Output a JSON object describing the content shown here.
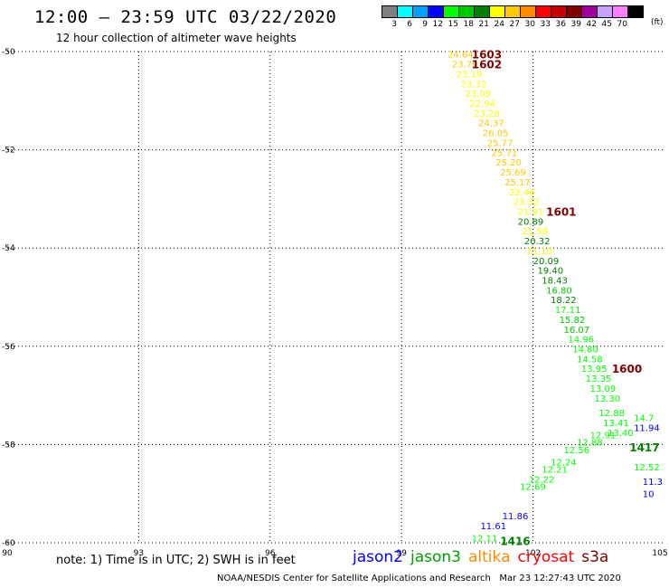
{
  "header": {
    "title": "12:00 – 23:59 UTC 03/22/2020",
    "subtitle": "12 hour collection of altimeter wave heights"
  },
  "color_scale": {
    "unit": "(ft)",
    "bins": [
      {
        "label": "3",
        "color": "#808080"
      },
      {
        "label": "6",
        "color": "#00ffff"
      },
      {
        "label": "9",
        "color": "#00a0ff"
      },
      {
        "label": "12",
        "color": "#0000ff"
      },
      {
        "label": "15",
        "color": "#00ff00"
      },
      {
        "label": "18",
        "color": "#00c800"
      },
      {
        "label": "21",
        "color": "#008000"
      },
      {
        "label": "24",
        "color": "#ffff00"
      },
      {
        "label": "27",
        "color": "#ffc800"
      },
      {
        "label": "30",
        "color": "#ff8c00"
      },
      {
        "label": "33",
        "color": "#ff0000"
      },
      {
        "label": "36",
        "color": "#c80000"
      },
      {
        "label": "39",
        "color": "#800000"
      },
      {
        "label": "42",
        "color": "#a000a0"
      },
      {
        "label": "45",
        "color": "#c8a0ff"
      },
      {
        "label": "70",
        "color": "#ff80ff"
      },
      {
        "label": "",
        "color": "#000000"
      }
    ]
  },
  "note": "note: 1) Time is in UTC; 2) SWH is in feet",
  "legend": [
    {
      "label": "jason2",
      "color": "#0000ff"
    },
    {
      "label": "jason3",
      "color": "#00a000"
    },
    {
      "label": "altika",
      "color": "#ff8c00"
    },
    {
      "label": "cryosat",
      "color": "#ff0000"
    },
    {
      "label": "s3a",
      "color": "#800000"
    }
  ],
  "footer": "NOAA/NESDIS Center for Satellite Applications and Research   Mar 23 12:27:43 UTC 2020",
  "chart_data": {
    "type": "scatter",
    "xlim": [
      90,
      105
    ],
    "ylim": [
      -60,
      -50
    ],
    "x_ticks": [
      "90",
      "93",
      "96",
      "99",
      "102",
      "105"
    ],
    "y_ticks": [
      "-50",
      "-52",
      "-54",
      "-56",
      "-58",
      "-60"
    ],
    "grid": true,
    "points": [
      {
        "x": 100.05,
        "y": -50.05,
        "label": "24.64",
        "color": "#ffc800"
      },
      {
        "x": 100.15,
        "y": -50.25,
        "label": "23.70",
        "color": "#ffc800"
      },
      {
        "x": 100.25,
        "y": -50.45,
        "label": "23.19",
        "color": "#ffff00"
      },
      {
        "x": 100.35,
        "y": -50.65,
        "label": "23.32",
        "color": "#ffff00"
      },
      {
        "x": 100.45,
        "y": -50.85,
        "label": "23.09",
        "color": "#ffff00"
      },
      {
        "x": 100.55,
        "y": -51.05,
        "label": "22.94",
        "color": "#ffff00"
      },
      {
        "x": 100.65,
        "y": -51.25,
        "label": "23.28",
        "color": "#ffff00"
      },
      {
        "x": 100.75,
        "y": -51.45,
        "label": "24.37",
        "color": "#ffc800"
      },
      {
        "x": 100.85,
        "y": -51.65,
        "label": "26.05",
        "color": "#ffc800"
      },
      {
        "x": 100.95,
        "y": -51.85,
        "label": "25.77",
        "color": "#ffc800"
      },
      {
        "x": 101.05,
        "y": -52.05,
        "label": "25.71",
        "color": "#ffc800"
      },
      {
        "x": 101.15,
        "y": -52.25,
        "label": "25.20",
        "color": "#ffc800"
      },
      {
        "x": 101.25,
        "y": -52.45,
        "label": "25.69",
        "color": "#ffc800"
      },
      {
        "x": 101.35,
        "y": -52.65,
        "label": "25.17",
        "color": "#ffc800"
      },
      {
        "x": 101.45,
        "y": -52.85,
        "label": "23.46",
        "color": "#ffff00"
      },
      {
        "x": 101.55,
        "y": -53.05,
        "label": "23.32",
        "color": "#ffff00"
      },
      {
        "x": 101.65,
        "y": -53.25,
        "label": "21.91",
        "color": "#ffff00"
      },
      {
        "x": 101.65,
        "y": -53.45,
        "label": "20.89",
        "color": "#008000"
      },
      {
        "x": 101.75,
        "y": -53.65,
        "label": "21.58",
        "color": "#ffff00"
      },
      {
        "x": 101.8,
        "y": -53.85,
        "label": "20.32",
        "color": "#008000"
      },
      {
        "x": 101.85,
        "y": -54.05,
        "label": "21.10",
        "color": "#ffff00"
      },
      {
        "x": 102.0,
        "y": -54.25,
        "label": "20.09",
        "color": "#008000"
      },
      {
        "x": 102.1,
        "y": -54.45,
        "label": "19.40",
        "color": "#008000"
      },
      {
        "x": 102.2,
        "y": -54.65,
        "label": "18.43",
        "color": "#008000"
      },
      {
        "x": 102.3,
        "y": -54.85,
        "label": "16.80",
        "color": "#00c800"
      },
      {
        "x": 102.4,
        "y": -55.05,
        "label": "18.22",
        "color": "#008000"
      },
      {
        "x": 102.5,
        "y": -55.25,
        "label": "17.11",
        "color": "#00ff00"
      },
      {
        "x": 102.6,
        "y": -55.45,
        "label": "15.82",
        "color": "#00c800"
      },
      {
        "x": 102.7,
        "y": -55.65,
        "label": "16.07",
        "color": "#00c800"
      },
      {
        "x": 102.8,
        "y": -55.85,
        "label": "14.96",
        "color": "#00ff00"
      },
      {
        "x": 102.9,
        "y": -56.05,
        "label": "14.80",
        "color": "#00ff00"
      },
      {
        "x": 103.0,
        "y": -56.25,
        "label": "14.58",
        "color": "#00ff00"
      },
      {
        "x": 103.1,
        "y": -56.45,
        "label": "13.95",
        "color": "#00ff00"
      },
      {
        "x": 103.2,
        "y": -56.65,
        "label": "13.35",
        "color": "#00ff00"
      },
      {
        "x": 103.3,
        "y": -56.85,
        "label": "13.09",
        "color": "#00ff00"
      },
      {
        "x": 103.4,
        "y": -57.05,
        "label": "13.30",
        "color": "#00ff00"
      },
      {
        "x": 103.5,
        "y": -57.35,
        "label": "12.88",
        "color": "#00ff00"
      },
      {
        "x": 103.6,
        "y": -57.55,
        "label": "13.41",
        "color": "#00ff00"
      },
      {
        "x": 103.7,
        "y": -57.75,
        "label": "13.40",
        "color": "#00ff00"
      },
      {
        "x": 103.3,
        "y": -57.8,
        "label": "12.91",
        "color": "#00ff00"
      },
      {
        "x": 103.0,
        "y": -57.95,
        "label": "12.88",
        "color": "#00ff00"
      },
      {
        "x": 102.7,
        "y": -58.1,
        "label": "12.56",
        "color": "#00ff00"
      },
      {
        "x": 102.4,
        "y": -58.35,
        "label": "12.24",
        "color": "#00ff00"
      },
      {
        "x": 102.2,
        "y": -58.5,
        "label": "12.21",
        "color": "#00ff00"
      },
      {
        "x": 101.9,
        "y": -58.7,
        "label": "12.22",
        "color": "#00ff00"
      },
      {
        "x": 101.7,
        "y": -58.85,
        "label": "12.69",
        "color": "#00ff00"
      },
      {
        "x": 101.3,
        "y": -59.45,
        "label": "11.86",
        "color": "#0000ff"
      },
      {
        "x": 100.8,
        "y": -59.65,
        "label": "11.61",
        "color": "#0000ff"
      },
      {
        "x": 100.6,
        "y": -59.9,
        "label": "12.11",
        "color": "#00ff00"
      },
      {
        "x": 104.3,
        "y": -57.45,
        "label": "14.7",
        "color": "#00ff00"
      },
      {
        "x": 104.3,
        "y": -57.65,
        "label": "11.94",
        "color": "#0000ff"
      },
      {
        "x": 104.3,
        "y": -58.45,
        "label": "12.52",
        "color": "#00ff00"
      },
      {
        "x": 104.5,
        "y": -58.75,
        "label": "11.3",
        "color": "#0000ff"
      },
      {
        "x": 104.5,
        "y": -59.0,
        "label": "10",
        "color": "#0000ff"
      }
    ],
    "pass_labels": [
      {
        "x": 100.6,
        "y": -50.05,
        "label": "1603",
        "color": "#800000"
      },
      {
        "x": 100.6,
        "y": -50.25,
        "label": "1602",
        "color": "#800000"
      },
      {
        "x": 102.3,
        "y": -53.25,
        "label": "1601",
        "color": "#800000"
      },
      {
        "x": 103.8,
        "y": -56.45,
        "label": "1600",
        "color": "#800000"
      },
      {
        "x": 104.2,
        "y": -58.05,
        "label": "1417",
        "color": "#008000"
      },
      {
        "x": 101.25,
        "y": -59.95,
        "label": "1416",
        "color": "#008000"
      }
    ]
  }
}
